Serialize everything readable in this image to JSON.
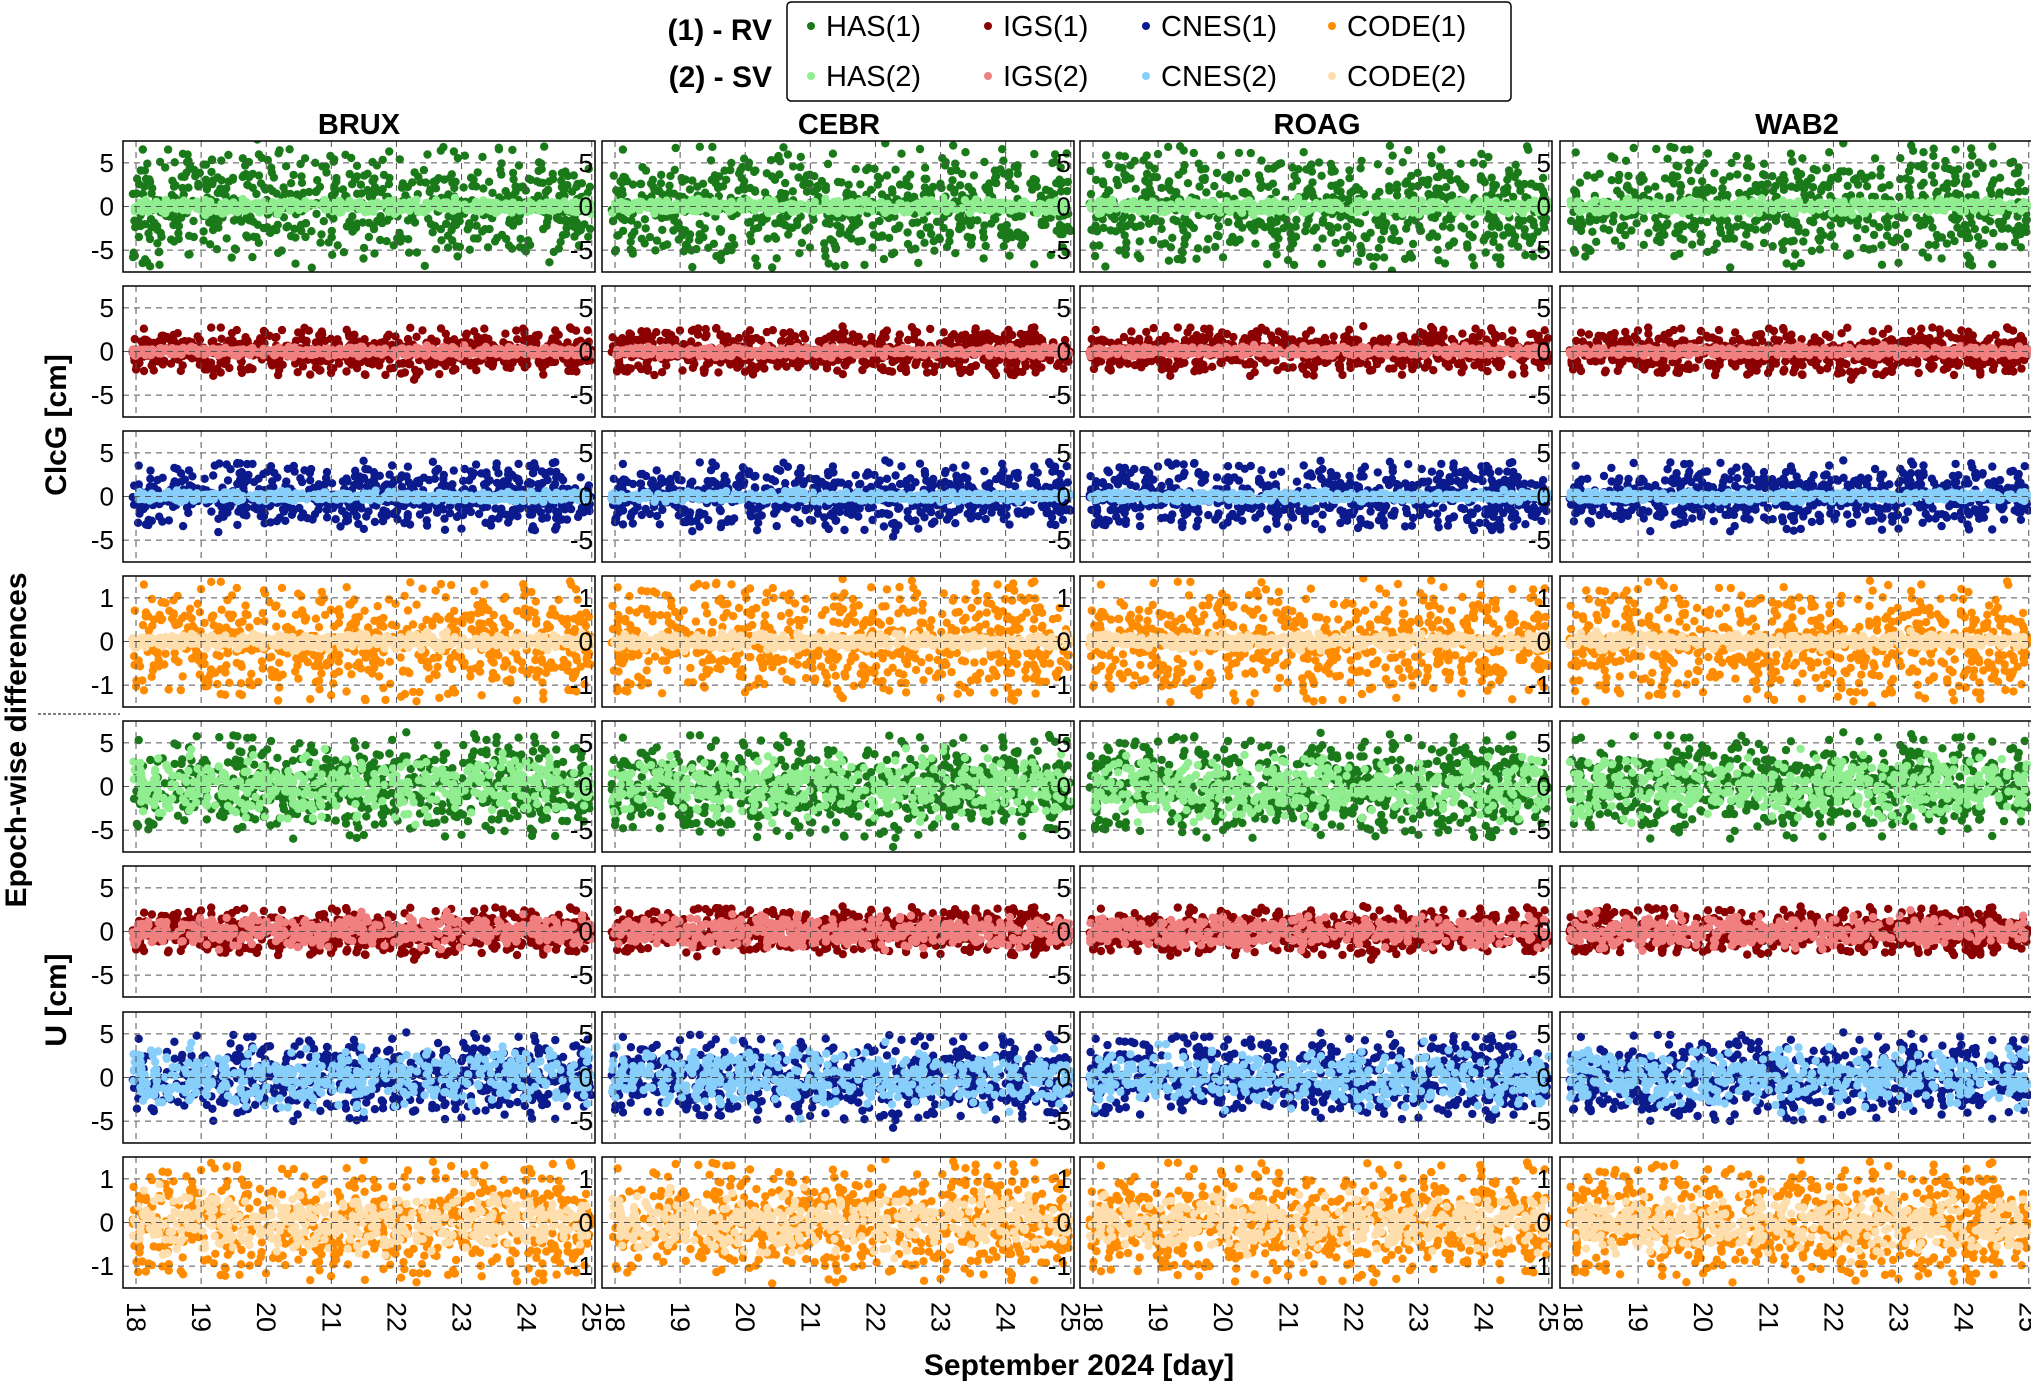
{
  "legend": {
    "row_labels": [
      "(1) - RV",
      "(2) - SV"
    ],
    "entries_rv": [
      {
        "label": "HAS(1)",
        "color": "#1a7a1a"
      },
      {
        "label": "IGS(1)",
        "color": "#8b0000"
      },
      {
        "label": "CNES(1)",
        "color": "#0b1a8c"
      },
      {
        "label": "CODE(1)",
        "color": "#ff8c00"
      }
    ],
    "entries_sv": [
      {
        "label": "HAS(2)",
        "color": "#90ee90"
      },
      {
        "label": "IGS(2)",
        "color": "#f08080"
      },
      {
        "label": "CNES(2)",
        "color": "#87cefa"
      },
      {
        "label": "CODE(2)",
        "color": "#ffdead"
      }
    ]
  },
  "stations": [
    "BRUX",
    "CEBR",
    "ROAG",
    "WAB2"
  ],
  "ylabels": {
    "left_outer": "Epoch-wise  differences",
    "upper_group": "ClcG [cm]",
    "lower_group": "U  [cm]"
  },
  "xlabel": "September 2024 [day]",
  "chart_data": {
    "type": "scatter",
    "x_unit": "day of September 2024",
    "xlim": [
      17.8,
      25.05
    ],
    "x_ticks": [
      18,
      19,
      20,
      21,
      22,
      23,
      24,
      25
    ],
    "x_tick_labels": [
      "18",
      "19",
      "20",
      "21",
      "22",
      "23",
      "24",
      "25"
    ],
    "grid": true,
    "rows": [
      {
        "group": "ClcG",
        "product": "HAS",
        "ylim": [
          -7.5,
          7.5
        ],
        "y_ticks": [
          -5,
          0,
          5
        ],
        "y_tick_labels": [
          "-5",
          "0",
          "5"
        ],
        "rv_spread": 7,
        "sv_spread": 0.35
      },
      {
        "group": "ClcG",
        "product": "IGS",
        "ylim": [
          -7.5,
          7.5
        ],
        "y_ticks": [
          -5,
          0,
          5
        ],
        "y_tick_labels": [
          "-5",
          "0",
          "5"
        ],
        "rv_spread": 2.8,
        "sv_spread": 0.25
      },
      {
        "group": "ClcG",
        "product": "CNES",
        "ylim": [
          -7.5,
          7.5
        ],
        "y_ticks": [
          -5,
          0,
          5
        ],
        "y_tick_labels": [
          "-5",
          "0",
          "5"
        ],
        "rv_spread": 4,
        "sv_spread": 0.25
      },
      {
        "group": "ClcG",
        "product": "CODE",
        "ylim": [
          -1.5,
          1.5
        ],
        "y_ticks": [
          -1,
          0,
          1
        ],
        "y_tick_labels": [
          "-1",
          "0",
          "1"
        ],
        "rv_spread": 1.4,
        "sv_spread": 0.08
      },
      {
        "group": "U",
        "product": "HAS",
        "ylim": [
          -7.5,
          7.5
        ],
        "y_ticks": [
          -5,
          0,
          5
        ],
        "y_tick_labels": [
          "-5",
          "0",
          "5"
        ],
        "rv_spread": 6,
        "sv_spread": 1.6
      },
      {
        "group": "U",
        "product": "IGS",
        "ylim": [
          -7.5,
          7.5
        ],
        "y_ticks": [
          -5,
          0,
          5
        ],
        "y_tick_labels": [
          "-5",
          "0",
          "5"
        ],
        "rv_spread": 2.8,
        "sv_spread": 0.8
      },
      {
        "group": "U",
        "product": "CNES",
        "ylim": [
          -7.5,
          7.5
        ],
        "y_ticks": [
          -5,
          0,
          5
        ],
        "y_tick_labels": [
          "-5",
          "0",
          "5"
        ],
        "rv_spread": 5,
        "sv_spread": 1.5
      },
      {
        "group": "U",
        "product": "CODE",
        "ylim": [
          -1.5,
          1.5
        ],
        "y_ticks": [
          -1,
          0,
          1
        ],
        "y_tick_labels": [
          "-1",
          "0",
          "1"
        ],
        "rv_spread": 1.4,
        "sv_spread": 0.3
      }
    ]
  }
}
